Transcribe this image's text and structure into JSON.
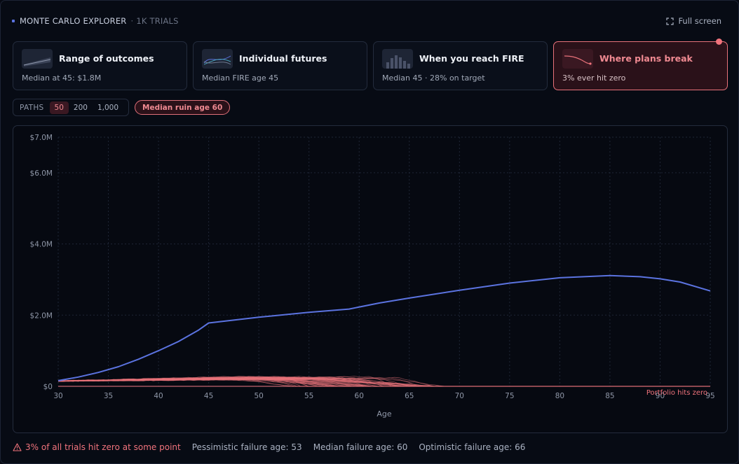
{
  "header": {
    "title": "MONTE CARLO EXPLORER",
    "separator": "·",
    "trials": "1K TRIALS",
    "fullscreen_label": "Full screen"
  },
  "cards": [
    {
      "title": "Range of outcomes",
      "subtitle": "Median at 45: $1.8M",
      "active": false,
      "icon": "range-thumbnail"
    },
    {
      "title": "Individual futures",
      "subtitle": "Median FIRE age 45",
      "active": false,
      "icon": "paths-thumbnail"
    },
    {
      "title": "When you reach FIRE",
      "subtitle": "Median 45 · 28% on target",
      "active": false,
      "icon": "histogram-thumbnail"
    },
    {
      "title": "Where plans break",
      "subtitle": "3% ever hit zero",
      "active": true,
      "icon": "decline-thumbnail"
    }
  ],
  "controls": {
    "paths_label": "PATHS",
    "path_options": [
      "50",
      "200",
      "1,000"
    ],
    "selected_paths": "50",
    "ruin_badge": "Median ruin age 60"
  },
  "colors": {
    "accent_blue": "#5b73e0",
    "failure_red": "#f0737c",
    "failure_path": "#e8727a"
  },
  "chart_data": {
    "type": "line",
    "xlabel": "Age",
    "ylabel": "",
    "xlim": [
      30,
      95
    ],
    "ylim": [
      0,
      7000000
    ],
    "x_ticks": [
      30,
      35,
      40,
      45,
      50,
      55,
      60,
      65,
      70,
      75,
      80,
      85,
      90,
      95
    ],
    "y_ticks": [
      {
        "value": 0,
        "label": "$0"
      },
      {
        "value": 2000000,
        "label": "$2.0M"
      },
      {
        "value": 4000000,
        "label": "$4.0M"
      },
      {
        "value": 6000000,
        "label": "$6.0M"
      },
      {
        "value": 7000000,
        "label": "$7.0M"
      }
    ],
    "grid": true,
    "zero_line_label": "Portfolio hits zero",
    "median_series": {
      "x": [
        30,
        32,
        34,
        36,
        38,
        40,
        42,
        44,
        45,
        50,
        55,
        59,
        62,
        65,
        70,
        75,
        80,
        85,
        88,
        90,
        92,
        95
      ],
      "y": [
        160000,
        260000,
        390000,
        550000,
        760000,
        1000000,
        1260000,
        1580000,
        1780000,
        1940000,
        2080000,
        2170000,
        2340000,
        2480000,
        2700000,
        2900000,
        3050000,
        3110000,
        3080000,
        3020000,
        2930000,
        2680000
      ]
    },
    "failure_paths": {
      "count": 50,
      "start_value": 200000,
      "max_value": 300000,
      "median_ruin_age": 60,
      "earliest_ruin_age": 53,
      "latest_ruin_age": 69
    }
  },
  "footer": {
    "warning": "3% of all trials hit zero at some point",
    "pessimistic": "Pessimistic failure age: 53",
    "median": "Median failure age: 60",
    "optimistic": "Optimistic failure age: 66"
  }
}
